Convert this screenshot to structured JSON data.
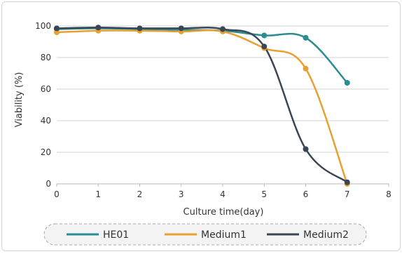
{
  "chart_data": {
    "type": "line",
    "title": "",
    "xlabel": "Culture time(day)",
    "ylabel": "Viability (%)",
    "xlim": [
      0,
      8
    ],
    "ylim": [
      0,
      100
    ],
    "x_ticks": [
      "0",
      "1",
      "2",
      "3",
      "4",
      "5",
      "6",
      "7",
      "8"
    ],
    "y_ticks": [
      "0",
      "20",
      "40",
      "60",
      "80",
      "100"
    ],
    "grid": "horizontal",
    "legend_position": "bottom",
    "x": [
      0,
      1,
      2,
      3,
      4,
      5,
      6,
      7
    ],
    "series": [
      {
        "name": "HE01",
        "color": "#2b8c93",
        "values": [
          98,
          98.5,
          98,
          97.5,
          97,
          94,
          92.5,
          64
        ]
      },
      {
        "name": "Medium1",
        "color": "#e8a030",
        "values": [
          96,
          97,
          97,
          96.5,
          96.5,
          86,
          73,
          0
        ]
      },
      {
        "name": "Medium2",
        "color": "#3a4656",
        "values": [
          98.5,
          99,
          98.5,
          98.5,
          98,
          87,
          22,
          1
        ]
      }
    ]
  }
}
